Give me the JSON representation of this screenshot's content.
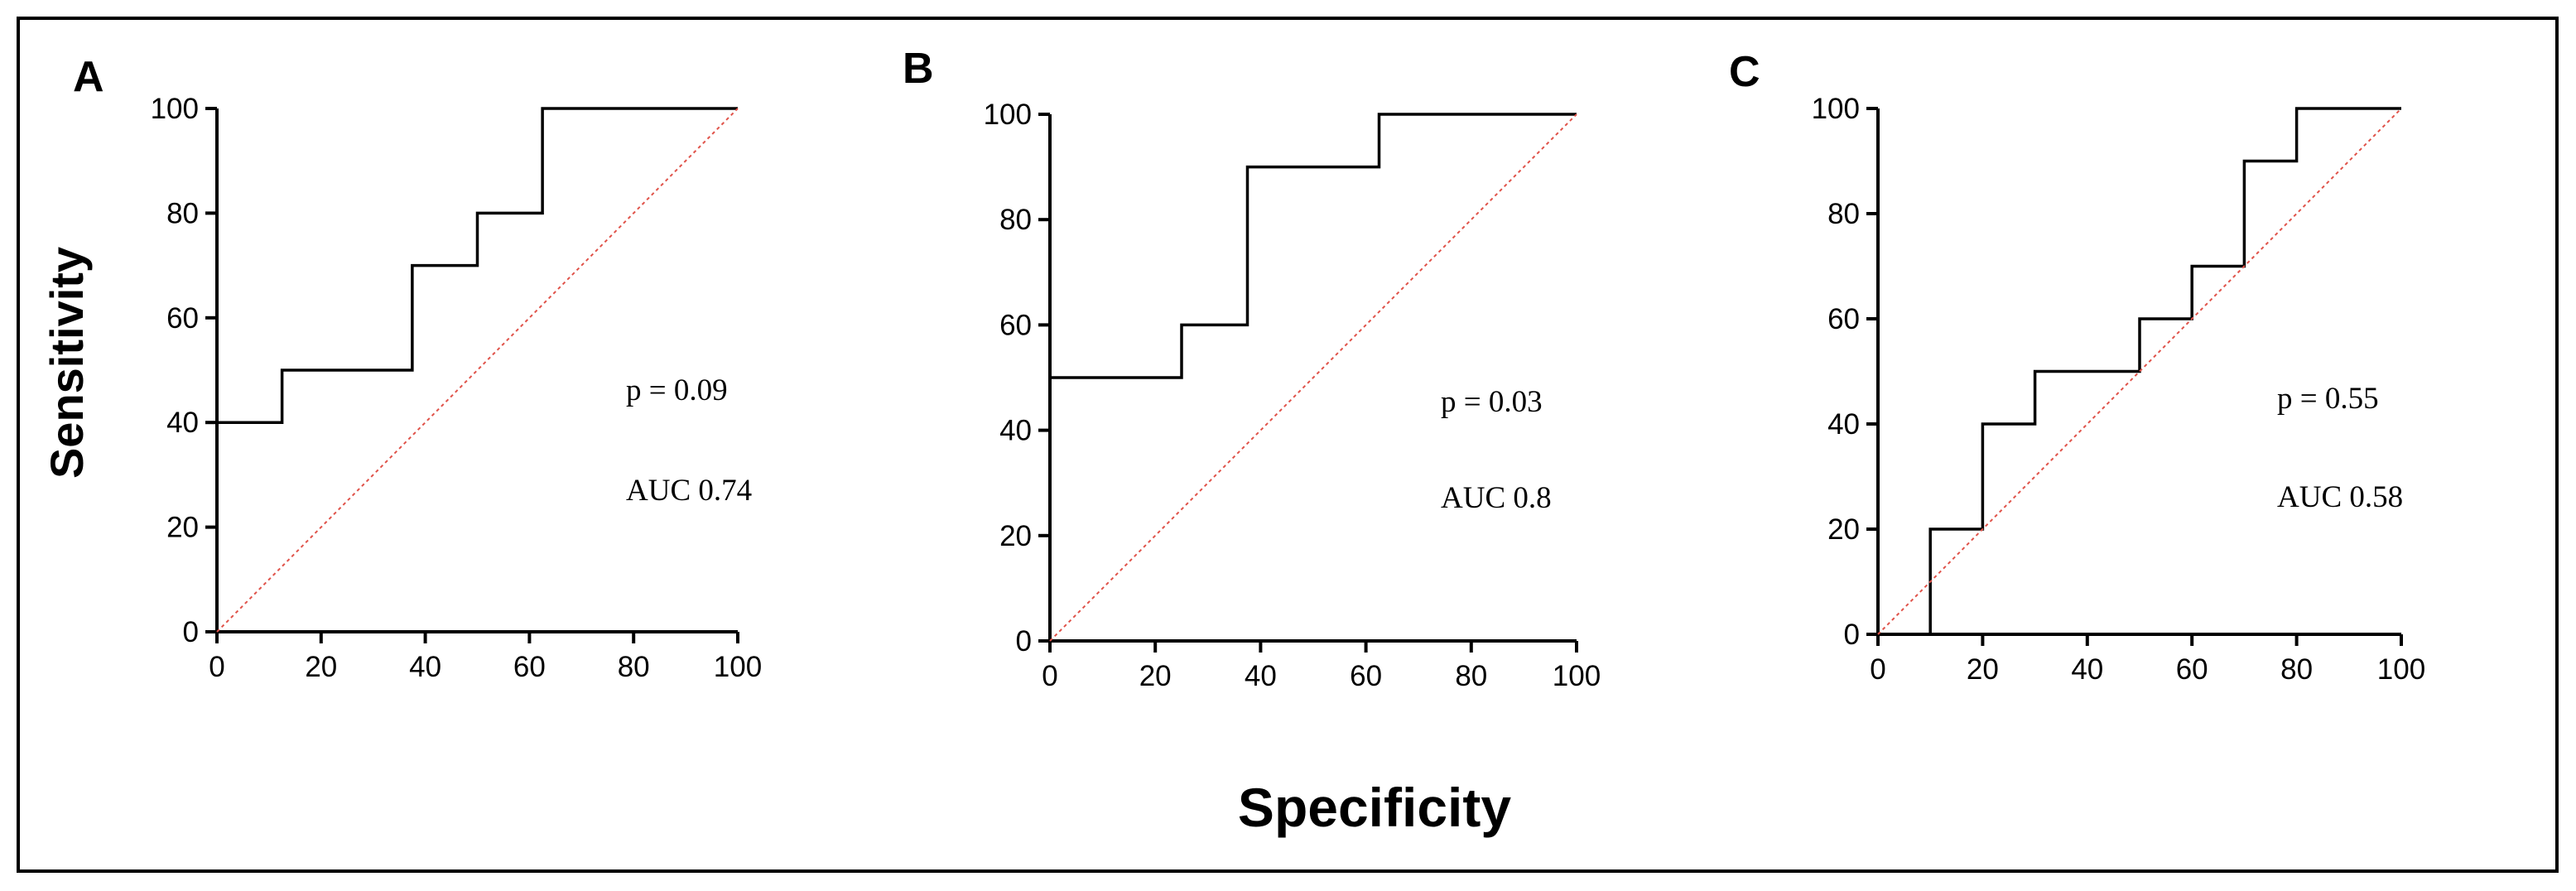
{
  "figure": {
    "ylabel": "Sensitivity",
    "xlabel": "Specificity"
  },
  "chart_data": [
    {
      "type": "line",
      "panel": "A",
      "xlabel": "Specificity",
      "ylabel": "Sensitivity",
      "xlim": [
        0,
        100
      ],
      "ylim": [
        0,
        100
      ],
      "xticks": [
        "0",
        "20",
        "40",
        "60",
        "80",
        "100"
      ],
      "yticks": [
        "0",
        "20",
        "40",
        "60",
        "80",
        "100"
      ],
      "series": [
        {
          "name": "ROC",
          "style": "step",
          "color": "#000000",
          "x": [
            0,
            12.5,
            12.5,
            37.5,
            37.5,
            50,
            50,
            62.5,
            62.5,
            100
          ],
          "y": [
            40,
            40,
            50,
            50,
            70,
            70,
            80,
            80,
            100,
            100
          ]
        },
        {
          "name": "reference",
          "style": "dashed",
          "color": "#e0534a",
          "x": [
            0,
            100
          ],
          "y": [
            0,
            100
          ]
        }
      ],
      "annotations": [
        "p = 0.09",
        "AUC 0.74"
      ]
    },
    {
      "type": "line",
      "panel": "B",
      "xlabel": "Specificity",
      "ylabel": "Sensitivity",
      "xlim": [
        0,
        100
      ],
      "ylim": [
        0,
        100
      ],
      "xticks": [
        "0",
        "20",
        "40",
        "60",
        "80",
        "100"
      ],
      "yticks": [
        "0",
        "20",
        "40",
        "60",
        "80",
        "100"
      ],
      "series": [
        {
          "name": "ROC",
          "style": "step",
          "color": "#000000",
          "x": [
            0,
            25,
            25,
            37.5,
            37.5,
            62.5,
            62.5,
            100
          ],
          "y": [
            50,
            50,
            60,
            60,
            90,
            90,
            100,
            100
          ]
        },
        {
          "name": "reference",
          "style": "dashed",
          "color": "#e0534a",
          "x": [
            0,
            100
          ],
          "y": [
            0,
            100
          ]
        }
      ],
      "annotations": [
        "p = 0.03",
        "AUC 0.8"
      ]
    },
    {
      "type": "line",
      "panel": "C",
      "xlabel": "Specificity",
      "ylabel": "Sensitivity",
      "xlim": [
        0,
        100
      ],
      "ylim": [
        0,
        100
      ],
      "xticks": [
        "0",
        "20",
        "40",
        "60",
        "80",
        "100"
      ],
      "yticks": [
        "0",
        "20",
        "40",
        "60",
        "80",
        "100"
      ],
      "series": [
        {
          "name": "ROC",
          "style": "step",
          "color": "#000000",
          "x": [
            10,
            10,
            20,
            20,
            30,
            30,
            50,
            50,
            60,
            60,
            70,
            70,
            80,
            80,
            100
          ],
          "y": [
            0,
            20,
            20,
            40,
            40,
            50,
            50,
            60,
            60,
            70,
            70,
            90,
            90,
            100,
            100
          ]
        },
        {
          "name": "reference",
          "style": "dashed",
          "color": "#e0534a",
          "x": [
            0,
            100
          ],
          "y": [
            0,
            100
          ]
        }
      ],
      "annotations": [
        "p = 0.55",
        "AUC 0.58"
      ]
    }
  ]
}
